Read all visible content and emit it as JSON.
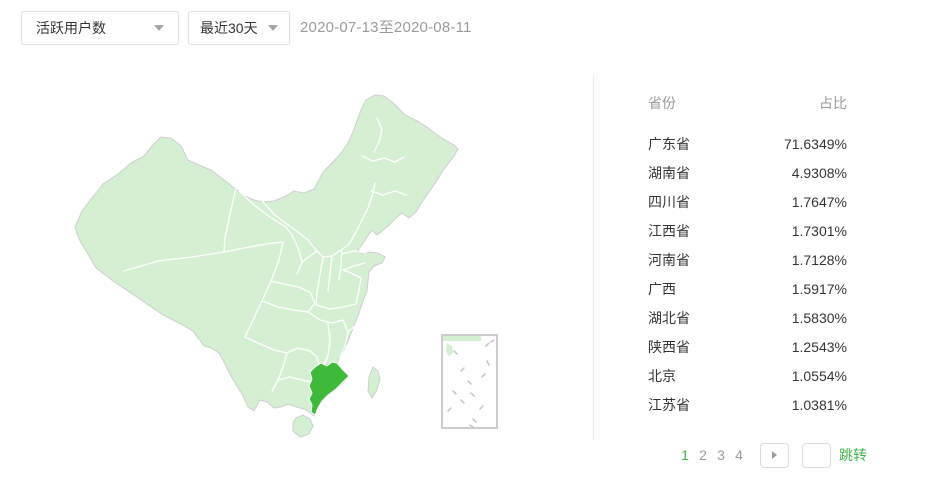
{
  "header": {
    "metric_select": {
      "value": "活跃用户数"
    },
    "range_select": {
      "value": "最近30天"
    },
    "date_range": "2020-07-13至2020-08-11"
  },
  "map": {
    "highlighted_province": "广东省",
    "colors": {
      "base": "#d4efd2",
      "highlight": "#3eb93a",
      "outline": "#cfcfcf",
      "province_border": "#ffffff",
      "inset_border": "#cccccc"
    }
  },
  "table": {
    "columns": {
      "province": "省份",
      "ratio": "占比"
    },
    "rows": [
      {
        "province": "广东省",
        "ratio": "71.6349%"
      },
      {
        "province": "湖南省",
        "ratio": "4.9308%"
      },
      {
        "province": "四川省",
        "ratio": "1.7647%"
      },
      {
        "province": "江西省",
        "ratio": "1.7301%"
      },
      {
        "province": "河南省",
        "ratio": "1.7128%"
      },
      {
        "province": "广西",
        "ratio": "1.5917%"
      },
      {
        "province": "湖北省",
        "ratio": "1.5830%"
      },
      {
        "province": "陕西省",
        "ratio": "1.2543%"
      },
      {
        "province": "北京",
        "ratio": "1.0554%"
      },
      {
        "province": "江苏省",
        "ratio": "1.0381%"
      }
    ]
  },
  "pagination": {
    "pages": [
      "1",
      "2",
      "3",
      "4"
    ],
    "current": "1",
    "jump_label": "跳转",
    "jump_value": ""
  },
  "colors": {
    "accent_green": "#43b549",
    "text_dark": "#353535",
    "text_gray": "#9b9b9b"
  }
}
